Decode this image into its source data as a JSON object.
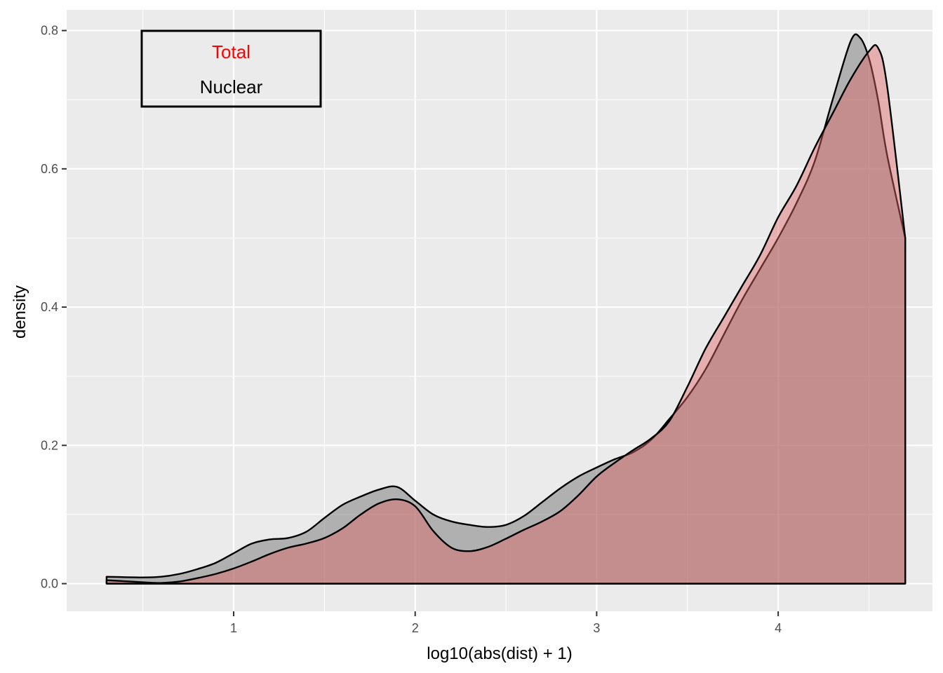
{
  "chart_data": {
    "type": "area",
    "xlabel": "log10(abs(dist) + 1)",
    "ylabel": "density",
    "xlim": [
      0.08,
      4.85
    ],
    "ylim": [
      -0.04,
      0.83
    ],
    "x_ticks": [
      1,
      2,
      3,
      4
    ],
    "x_tick_labels": [
      "1",
      "2",
      "3",
      "4"
    ],
    "y_ticks": [
      0.0,
      0.2,
      0.4,
      0.6,
      0.8
    ],
    "y_tick_labels": [
      "0.0",
      "0.2",
      "0.4",
      "0.6",
      "0.8"
    ],
    "grid": true,
    "legend": {
      "placement": "top-left",
      "entries": [
        {
          "label": "Total",
          "color": "#ff0000"
        },
        {
          "label": "Nuclear",
          "color": "#000000"
        }
      ]
    },
    "series": [
      {
        "key": "nuclear",
        "fill": "#7f7f7f",
        "fill_opacity": 0.55,
        "stroke": "#000000",
        "x": [
          0.3,
          0.5,
          0.6,
          0.7,
          0.8,
          0.9,
          1.0,
          1.1,
          1.2,
          1.3,
          1.4,
          1.5,
          1.6,
          1.7,
          1.8,
          1.9,
          2.0,
          2.1,
          2.2,
          2.3,
          2.4,
          2.5,
          2.6,
          2.7,
          2.8,
          2.9,
          3.0,
          3.1,
          3.2,
          3.3,
          3.4,
          3.5,
          3.6,
          3.7,
          3.8,
          3.9,
          4.0,
          4.1,
          4.2,
          4.3,
          4.4,
          4.45,
          4.5,
          4.55,
          4.6,
          4.7
        ],
        "y": [
          0.01,
          0.009,
          0.01,
          0.014,
          0.021,
          0.03,
          0.044,
          0.058,
          0.064,
          0.066,
          0.075,
          0.095,
          0.114,
          0.126,
          0.136,
          0.14,
          0.12,
          0.1,
          0.09,
          0.085,
          0.082,
          0.085,
          0.098,
          0.118,
          0.138,
          0.155,
          0.168,
          0.18,
          0.19,
          0.208,
          0.238,
          0.27,
          0.31,
          0.36,
          0.41,
          0.455,
          0.5,
          0.55,
          0.61,
          0.7,
          0.785,
          0.79,
          0.76,
          0.7,
          0.62,
          0.5
        ]
      },
      {
        "key": "total",
        "fill": "#e06666",
        "fill_opacity": 0.45,
        "stroke": "#000000",
        "x": [
          0.3,
          0.5,
          0.6,
          0.7,
          0.8,
          0.9,
          1.0,
          1.1,
          1.2,
          1.3,
          1.4,
          1.5,
          1.6,
          1.7,
          1.8,
          1.9,
          2.0,
          2.1,
          2.2,
          2.3,
          2.4,
          2.5,
          2.6,
          2.7,
          2.8,
          2.9,
          3.0,
          3.1,
          3.2,
          3.3,
          3.4,
          3.5,
          3.6,
          3.7,
          3.8,
          3.9,
          4.0,
          4.1,
          4.2,
          4.3,
          4.4,
          4.5,
          4.55,
          4.6,
          4.7
        ],
        "y": [
          0.005,
          0.002,
          0.001,
          0.003,
          0.008,
          0.014,
          0.022,
          0.032,
          0.043,
          0.052,
          0.058,
          0.066,
          0.08,
          0.1,
          0.116,
          0.122,
          0.112,
          0.076,
          0.052,
          0.047,
          0.053,
          0.065,
          0.078,
          0.09,
          0.105,
          0.128,
          0.155,
          0.175,
          0.193,
          0.21,
          0.235,
          0.285,
          0.34,
          0.385,
          0.43,
          0.475,
          0.53,
          0.575,
          0.63,
          0.68,
          0.73,
          0.77,
          0.775,
          0.72,
          0.5
        ]
      }
    ]
  }
}
